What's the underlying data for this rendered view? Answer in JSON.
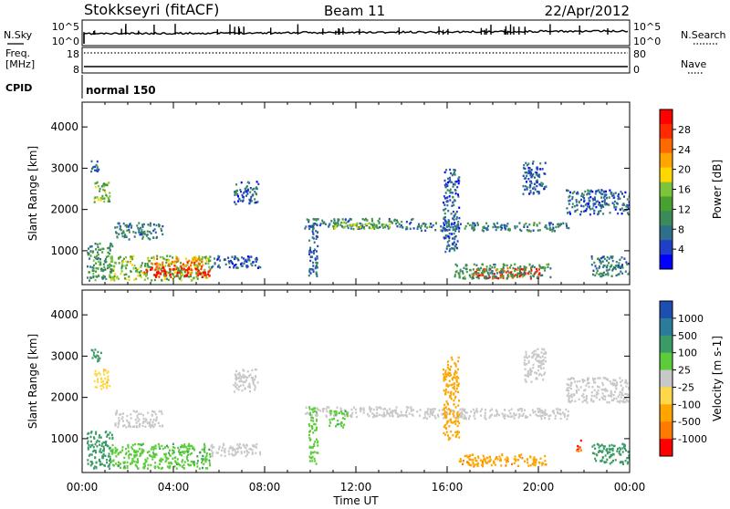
{
  "header": {
    "station": "Stokkseyri (fitACF)",
    "beam": "Beam 11",
    "date": "22/Apr/2012"
  },
  "top_panels": {
    "nsky_label": "N.Sky",
    "nsearch_label": "N.Search",
    "freq_label_line1": "Freq.",
    "freq_label_line2": "[MHz]",
    "nave_label": "Nave",
    "cpid_label": "CPID",
    "cpid_value": "normal 150",
    "nsky_ticks": [
      "10^5",
      "10^0"
    ],
    "freq_ticks": [
      "18",
      "8"
    ],
    "nave_ticks": [
      "80",
      "0"
    ]
  },
  "chart_data": [
    {
      "type": "heatmap",
      "panel": "power",
      "ylabel": "Slant Range [km]",
      "xlabel": "",
      "x_ticks": [
        "00:00",
        "04:00",
        "08:00",
        "12:00",
        "16:00",
        "20:00",
        "00:00"
      ],
      "y_ticks": [
        "1000",
        "2000",
        "3000",
        "4000"
      ],
      "xlim_hours": [
        0,
        24
      ],
      "ylim_km": [
        180,
        4600
      ],
      "colorbar": {
        "label": "Power [dB]",
        "ticks": [
          "28",
          "24",
          "20",
          "16",
          "12",
          "8",
          "4"
        ],
        "range": [
          0,
          30
        ],
        "colors": [
          "#0000ff",
          "#1f3fc8",
          "#2e6f8e",
          "#3a8a5a",
          "#47a02f",
          "#7cc43a",
          "#ffd700",
          "#ffa500",
          "#ff6a00",
          "#ff2a00",
          "#ff0000"
        ]
      },
      "regions": [
        {
          "t0": 0.2,
          "t1": 1.3,
          "r0": 300,
          "r1": 1200,
          "value": 10
        },
        {
          "t0": 0.5,
          "t1": 1.2,
          "r0": 2200,
          "r1": 2700,
          "value": 14
        },
        {
          "t0": 0.3,
          "t1": 0.7,
          "r0": 2900,
          "r1": 3200,
          "value": 6
        },
        {
          "t0": 1.2,
          "t1": 5.6,
          "r0": 300,
          "r1": 900,
          "value": 14
        },
        {
          "t0": 2.7,
          "t1": 5.6,
          "r0": 380,
          "r1": 620,
          "value": 28
        },
        {
          "t0": 3.0,
          "t1": 5.3,
          "r0": 620,
          "r1": 840,
          "value": 22
        },
        {
          "t0": 5.6,
          "t1": 7.8,
          "r0": 600,
          "r1": 900,
          "value": 6
        },
        {
          "t0": 1.4,
          "t1": 3.5,
          "r0": 1300,
          "r1": 1700,
          "value": 8
        },
        {
          "t0": 6.6,
          "t1": 7.7,
          "r0": 2150,
          "r1": 2700,
          "value": 6
        },
        {
          "t0": 9.7,
          "t1": 14.5,
          "r0": 1550,
          "r1": 1800,
          "value": 8
        },
        {
          "t0": 11.0,
          "t1": 13.5,
          "r0": 1550,
          "r1": 1700,
          "value": 14
        },
        {
          "t0": 14.5,
          "t1": 21.3,
          "r0": 1500,
          "r1": 1700,
          "value": 8
        },
        {
          "t0": 17.0,
          "t1": 20.2,
          "r0": 350,
          "r1": 600,
          "value": 26
        },
        {
          "t0": 16.3,
          "t1": 20.5,
          "r0": 350,
          "r1": 700,
          "value": 10
        },
        {
          "t0": 21.2,
          "t1": 24.0,
          "r0": 1900,
          "r1": 2500,
          "value": 6
        },
        {
          "t0": 22.3,
          "t1": 24.0,
          "r0": 400,
          "r1": 900,
          "value": 8
        },
        {
          "t0": 9.9,
          "t1": 10.3,
          "r0": 400,
          "r1": 1800,
          "value": 6
        },
        {
          "t0": 15.8,
          "t1": 16.5,
          "r0": 1000,
          "r1": 3000,
          "value": 6
        },
        {
          "t0": 19.3,
          "t1": 20.3,
          "r0": 2400,
          "r1": 3200,
          "value": 6
        }
      ]
    },
    {
      "type": "heatmap",
      "panel": "velocity",
      "ylabel": "Slant Range [km]",
      "xlabel": "Time UT",
      "x_ticks": [
        "00:00",
        "04:00",
        "08:00",
        "12:00",
        "16:00",
        "20:00",
        "00:00"
      ],
      "y_ticks": [
        "1000",
        "2000",
        "3000",
        "4000"
      ],
      "xlim_hours": [
        0,
        24
      ],
      "ylim_km": [
        180,
        4600
      ],
      "colorbar": {
        "label": "Velocity [m s-1]",
        "ticks": [
          "1000",
          "500",
          "100",
          "25",
          "-25",
          "-100",
          "-500",
          "-1000"
        ],
        "colors": [
          "#1c4fb0",
          "#2b7b9b",
          "#3b9b66",
          "#5ccc3a",
          "#c8c8c8",
          "#ffd84a",
          "#ffa500",
          "#ff7a00",
          "#ff0000"
        ]
      },
      "regions": [
        {
          "t0": 0.2,
          "t1": 1.3,
          "r0": 300,
          "r1": 1200,
          "value": 300
        },
        {
          "t0": 0.5,
          "t1": 1.2,
          "r0": 2200,
          "r1": 2700,
          "value": -80
        },
        {
          "t0": 0.3,
          "t1": 0.8,
          "r0": 2900,
          "r1": 3200,
          "value": 300
        },
        {
          "t0": 1.2,
          "t1": 5.6,
          "r0": 300,
          "r1": 900,
          "value": 80
        },
        {
          "t0": 5.6,
          "t1": 7.8,
          "r0": 600,
          "r1": 900,
          "value": 0
        },
        {
          "t0": 1.4,
          "t1": 3.5,
          "r0": 1300,
          "r1": 1700,
          "value": 0
        },
        {
          "t0": 6.6,
          "t1": 7.7,
          "r0": 2150,
          "r1": 2700,
          "value": 0
        },
        {
          "t0": 9.7,
          "t1": 14.5,
          "r0": 1550,
          "r1": 1800,
          "value": 0
        },
        {
          "t0": 10.8,
          "t1": 11.6,
          "r0": 1300,
          "r1": 1700,
          "value": 80
        },
        {
          "t0": 14.5,
          "t1": 21.3,
          "r0": 1500,
          "r1": 1750,
          "value": 0
        },
        {
          "t0": 16.5,
          "t1": 20.3,
          "r0": 350,
          "r1": 650,
          "value": -400
        },
        {
          "t0": 21.2,
          "t1": 24.0,
          "r0": 1900,
          "r1": 2500,
          "value": 0
        },
        {
          "t0": 22.3,
          "t1": 24.0,
          "r0": 400,
          "r1": 900,
          "value": 300
        },
        {
          "t0": 21.6,
          "t1": 21.9,
          "r0": 700,
          "r1": 1000,
          "value": -1000
        },
        {
          "t0": 9.9,
          "t1": 10.3,
          "r0": 400,
          "r1": 1800,
          "value": 60
        },
        {
          "t0": 15.8,
          "t1": 16.5,
          "r0": 1000,
          "r1": 3000,
          "value": -300
        },
        {
          "t0": 19.3,
          "t1": 20.3,
          "r0": 2400,
          "r1": 3200,
          "value": 0
        }
      ]
    }
  ]
}
